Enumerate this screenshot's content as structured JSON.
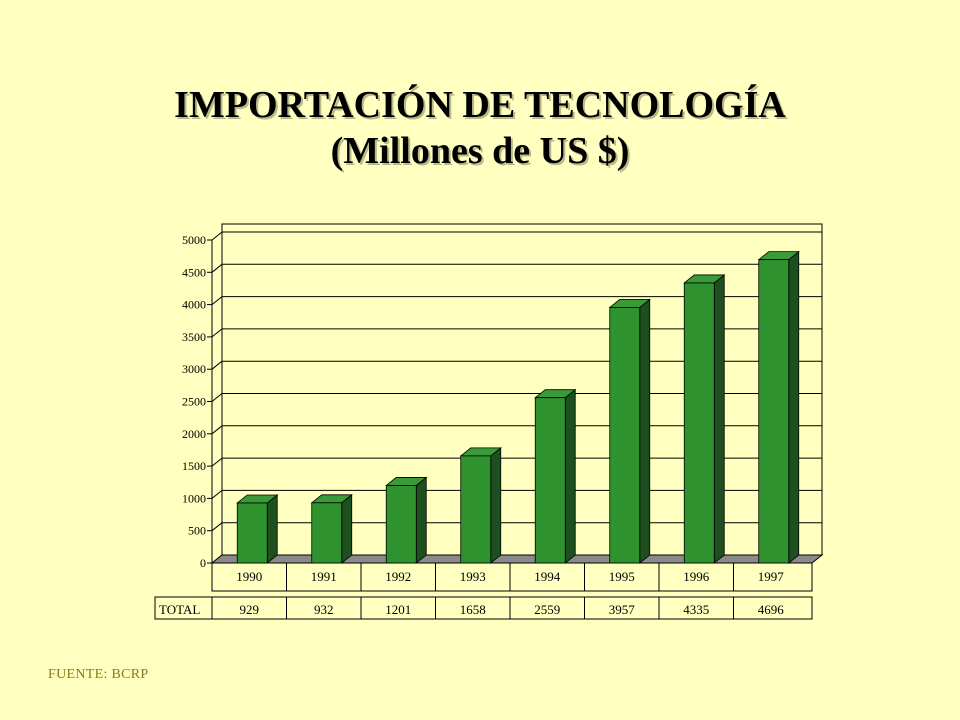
{
  "title": {
    "line1": "IMPORTACIÓN DE TECNOLOGÍA",
    "line2": "(Millones de US $)"
  },
  "colors": {
    "background": "#ffffc0",
    "bar_front": "#2e922e",
    "bar_top": "#3a9a3a",
    "bar_side": "#1e4f1e",
    "floor": "#8a8a8a"
  },
  "chart_data": {
    "type": "bar",
    "categories": [
      "1990",
      "1991",
      "1992",
      "1993",
      "1994",
      "1995",
      "1996",
      "1997"
    ],
    "series": [
      {
        "name": "TOTAL",
        "values": [
          929,
          932,
          1201,
          1658,
          2559,
          3957,
          4335,
          4696
        ]
      }
    ],
    "ylim": [
      0,
      5000
    ],
    "yticks": [
      "0",
      "500",
      "1000",
      "1500",
      "2000",
      "2500",
      "3000",
      "3500",
      "4000",
      "4500",
      "5000"
    ],
    "grid": true,
    "data_table": {
      "row_label": "TOTAL",
      "values": [
        "929",
        "932",
        "1201",
        "1658",
        "2559",
        "3957",
        "4335",
        "4696"
      ]
    }
  },
  "source": "FUENTE: BCRP"
}
